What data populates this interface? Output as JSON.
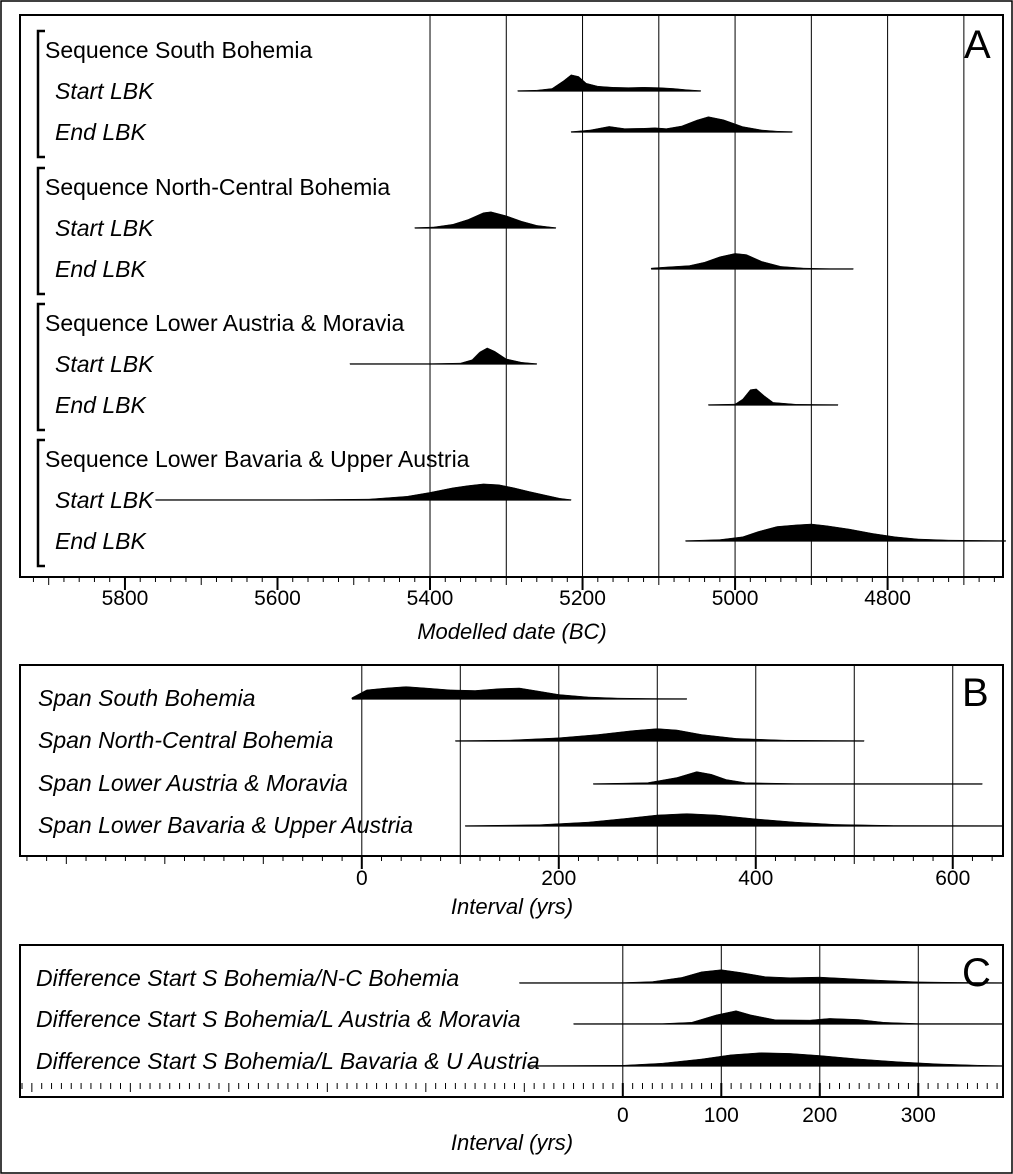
{
  "chart_data": [
    {
      "type": "density",
      "panel_label": "A",
      "xlabel": "Modelled date (BC)",
      "x_ticks": [
        5800,
        5600,
        5400,
        5200,
        5000,
        4800
      ],
      "xlim": [
        5935,
        4650
      ],
      "gridlines": [
        5400,
        5300,
        5200,
        5100,
        5000,
        4900,
        4800,
        4700
      ],
      "groups": [
        {
          "label": "Sequence South Bohemia",
          "series": [
            {
              "name": "Start LBK",
              "range": [
                5285,
                5045
              ],
              "density": [
                [
                  5285,
                  0.02
                ],
                [
                  5260,
                  0.05
                ],
                [
                  5240,
                  0.15
                ],
                [
                  5225,
                  0.6
                ],
                [
                  5215,
                  0.95
                ],
                [
                  5205,
                  0.85
                ],
                [
                  5195,
                  0.45
                ],
                [
                  5180,
                  0.28
                ],
                [
                  5160,
                  0.22
                ],
                [
                  5140,
                  0.2
                ],
                [
                  5120,
                  0.22
                ],
                [
                  5100,
                  0.2
                ],
                [
                  5080,
                  0.15
                ],
                [
                  5065,
                  0.08
                ],
                [
                  5045,
                  0.02
                ]
              ]
            },
            {
              "name": "End LBK",
              "range": [
                5215,
                4925
              ],
              "density": [
                [
                  5215,
                  0.02
                ],
                [
                  5190,
                  0.12
                ],
                [
                  5165,
                  0.33
                ],
                [
                  5145,
                  0.2
                ],
                [
                  5120,
                  0.22
                ],
                [
                  5105,
                  0.25
                ],
                [
                  5090,
                  0.2
                ],
                [
                  5070,
                  0.35
                ],
                [
                  5050,
                  0.7
                ],
                [
                  5035,
                  0.9
                ],
                [
                  5015,
                  0.72
                ],
                [
                  4990,
                  0.32
                ],
                [
                  4965,
                  0.12
                ],
                [
                  4945,
                  0.05
                ],
                [
                  4925,
                  0.02
                ]
              ]
            }
          ]
        },
        {
          "label": "Sequence North-Central Bohemia",
          "series": [
            {
              "name": "Start LBK",
              "range": [
                5420,
                5235
              ],
              "density": [
                [
                  5420,
                  0.02
                ],
                [
                  5395,
                  0.06
                ],
                [
                  5370,
                  0.22
                ],
                [
                  5350,
                  0.5
                ],
                [
                  5330,
                  0.9
                ],
                [
                  5320,
                  0.95
                ],
                [
                  5300,
                  0.72
                ],
                [
                  5280,
                  0.4
                ],
                [
                  5260,
                  0.15
                ],
                [
                  5235,
                  0.02
                ]
              ]
            },
            {
              "name": "End LBK",
              "range": [
                5110,
                4845
              ],
              "density": [
                [
                  5110,
                  0.05
                ],
                [
                  5090,
                  0.12
                ],
                [
                  5060,
                  0.2
                ],
                [
                  5040,
                  0.4
                ],
                [
                  5020,
                  0.72
                ],
                [
                  5000,
                  0.92
                ],
                [
                  4985,
                  0.85
                ],
                [
                  4965,
                  0.45
                ],
                [
                  4940,
                  0.15
                ],
                [
                  4910,
                  0.05
                ],
                [
                  4875,
                  0.02
                ],
                [
                  4845,
                  0.02
                ]
              ]
            }
          ]
        },
        {
          "label": "Sequence Lower Austria & Moravia",
          "series": [
            {
              "name": "Start LBK",
              "range": [
                5505,
                5260
              ],
              "density": [
                [
                  5505,
                  0.02
                ],
                [
                  5400,
                  0.02
                ],
                [
                  5360,
                  0.05
                ],
                [
                  5345,
                  0.25
                ],
                [
                  5335,
                  0.7
                ],
                [
                  5325,
                  0.95
                ],
                [
                  5315,
                  0.75
                ],
                [
                  5300,
                  0.3
                ],
                [
                  5280,
                  0.1
                ],
                [
                  5260,
                  0.02
                ]
              ]
            },
            {
              "name": "End LBK",
              "range": [
                5035,
                4865
              ],
              "density": [
                [
                  5035,
                  0.02
                ],
                [
                  5000,
                  0.05
                ],
                [
                  4990,
                  0.35
                ],
                [
                  4980,
                  0.9
                ],
                [
                  4972,
                  0.95
                ],
                [
                  4962,
                  0.55
                ],
                [
                  4950,
                  0.15
                ],
                [
                  4920,
                  0.04
                ],
                [
                  4865,
                  0.02
                ]
              ]
            }
          ]
        },
        {
          "label": "Sequence Lower Bavaria & Upper Austria",
          "series": [
            {
              "name": "Start LBK",
              "range": [
                5760,
                5215
              ],
              "density": [
                [
                  5760,
                  0.02
                ],
                [
                  5560,
                  0.02
                ],
                [
                  5480,
                  0.05
                ],
                [
                  5430,
                  0.22
                ],
                [
                  5400,
                  0.45
                ],
                [
                  5370,
                  0.72
                ],
                [
                  5350,
                  0.85
                ],
                [
                  5330,
                  0.95
                ],
                [
                  5310,
                  0.9
                ],
                [
                  5290,
                  0.72
                ],
                [
                  5270,
                  0.5
                ],
                [
                  5250,
                  0.3
                ],
                [
                  5230,
                  0.1
                ],
                [
                  5215,
                  0.02
                ]
              ]
            },
            {
              "name": "End LBK",
              "range": [
                5065,
                4645
              ],
              "density": [
                [
                  5065,
                  0.02
                ],
                [
                  5020,
                  0.08
                ],
                [
                  4990,
                  0.25
                ],
                [
                  4970,
                  0.55
                ],
                [
                  4945,
                  0.85
                ],
                [
                  4920,
                  0.95
                ],
                [
                  4900,
                  1.0
                ],
                [
                  4880,
                  0.9
                ],
                [
                  4850,
                  0.7
                ],
                [
                  4820,
                  0.45
                ],
                [
                  4790,
                  0.25
                ],
                [
                  4760,
                  0.12
                ],
                [
                  4720,
                  0.05
                ],
                [
                  4645,
                  0.02
                ]
              ]
            }
          ]
        }
      ]
    },
    {
      "type": "density",
      "panel_label": "B",
      "xlabel": "Interval (yrs)",
      "x_ticks": [
        0,
        200,
        400,
        600
      ],
      "xlim": [
        -345,
        650
      ],
      "gridlines": [
        0,
        100,
        200,
        300,
        400,
        500,
        600
      ],
      "series": [
        {
          "name": "Span South Bohemia",
          "range": [
            -10,
            330
          ],
          "density": [
            [
              -10,
              0.1
            ],
            [
              5,
              0.7
            ],
            [
              25,
              0.85
            ],
            [
              45,
              0.95
            ],
            [
              65,
              0.85
            ],
            [
              90,
              0.7
            ],
            [
              115,
              0.65
            ],
            [
              140,
              0.8
            ],
            [
              160,
              0.85
            ],
            [
              180,
              0.6
            ],
            [
              200,
              0.35
            ],
            [
              230,
              0.15
            ],
            [
              260,
              0.07
            ],
            [
              300,
              0.03
            ],
            [
              330,
              0.02
            ]
          ]
        },
        {
          "name": "Span North-Central Bohemia",
          "range": [
            95,
            510
          ],
          "density": [
            [
              95,
              0.02
            ],
            [
              150,
              0.07
            ],
            [
              200,
              0.25
            ],
            [
              240,
              0.5
            ],
            [
              275,
              0.8
            ],
            [
              300,
              0.95
            ],
            [
              320,
              0.85
            ],
            [
              345,
              0.5
            ],
            [
              380,
              0.2
            ],
            [
              430,
              0.06
            ],
            [
              510,
              0.02
            ]
          ]
        },
        {
          "name": "Span Lower Austria & Moravia",
          "range": [
            235,
            630
          ],
          "density": [
            [
              235,
              0.02
            ],
            [
              290,
              0.1
            ],
            [
              320,
              0.5
            ],
            [
              340,
              0.95
            ],
            [
              355,
              0.75
            ],
            [
              370,
              0.35
            ],
            [
              390,
              0.1
            ],
            [
              440,
              0.03
            ],
            [
              630,
              0.02
            ]
          ]
        },
        {
          "name": "Span Lower Bavaria & Upper Austria",
          "range": [
            105,
            650
          ],
          "density": [
            [
              105,
              0.02
            ],
            [
              180,
              0.1
            ],
            [
              230,
              0.3
            ],
            [
              270,
              0.6
            ],
            [
              300,
              0.85
            ],
            [
              330,
              0.95
            ],
            [
              360,
              0.85
            ],
            [
              400,
              0.55
            ],
            [
              440,
              0.3
            ],
            [
              480,
              0.12
            ],
            [
              540,
              0.04
            ],
            [
              650,
              0.02
            ]
          ]
        }
      ]
    },
    {
      "type": "density",
      "panel_label": "C",
      "xlabel": "Interval (yrs)",
      "x_ticks": [
        0,
        100,
        200,
        300
      ],
      "xlim": [
        -610,
        385
      ],
      "gridlines": [
        0,
        100,
        200,
        300
      ],
      "series": [
        {
          "name": "Difference Start S Bohemia/N-C Bohemia",
          "range": [
            -105,
            385
          ],
          "density": [
            [
              -105,
              0.02
            ],
            [
              0,
              0.03
            ],
            [
              30,
              0.1
            ],
            [
              60,
              0.4
            ],
            [
              80,
              0.8
            ],
            [
              100,
              0.95
            ],
            [
              120,
              0.75
            ],
            [
              145,
              0.45
            ],
            [
              170,
              0.38
            ],
            [
              200,
              0.42
            ],
            [
              220,
              0.35
            ],
            [
              260,
              0.2
            ],
            [
              300,
              0.08
            ],
            [
              340,
              0.04
            ],
            [
              385,
              0.02
            ]
          ]
        },
        {
          "name": "Difference Start S Bohemia/L Austria & Moravia",
          "range": [
            -50,
            385
          ],
          "density": [
            [
              -50,
              0.02
            ],
            [
              40,
              0.03
            ],
            [
              70,
              0.12
            ],
            [
              95,
              0.65
            ],
            [
              115,
              0.95
            ],
            [
              130,
              0.65
            ],
            [
              155,
              0.3
            ],
            [
              190,
              0.28
            ],
            [
              210,
              0.4
            ],
            [
              240,
              0.32
            ],
            [
              265,
              0.12
            ],
            [
              300,
              0.03
            ],
            [
              385,
              0.02
            ]
          ]
        },
        {
          "name": "Difference Start S Bohemia/L Bavaria & U Austria",
          "range": [
            -95,
            385
          ],
          "density": [
            [
              -95,
              0.02
            ],
            [
              0,
              0.05
            ],
            [
              40,
              0.2
            ],
            [
              80,
              0.5
            ],
            [
              110,
              0.8
            ],
            [
              140,
              0.95
            ],
            [
              170,
              0.9
            ],
            [
              200,
              0.75
            ],
            [
              240,
              0.5
            ],
            [
              280,
              0.3
            ],
            [
              320,
              0.15
            ],
            [
              360,
              0.06
            ],
            [
              385,
              0.02
            ]
          ]
        }
      ]
    }
  ]
}
